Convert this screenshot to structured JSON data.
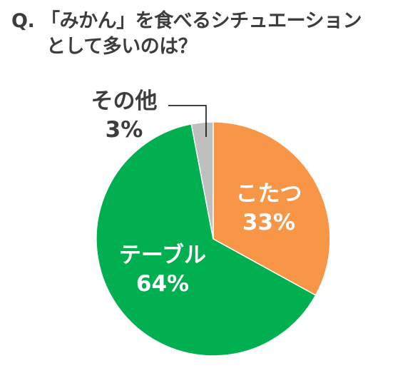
{
  "question": {
    "line1": "Q. 「みかん」を食べるシチュエーション",
    "line2": "として多いのは？"
  },
  "chart_data": {
    "type": "pie",
    "title": "Q. 「みかん」を食べるシチュエーションとして多いのは？",
    "slices": [
      {
        "label": "こたつ",
        "value": 33,
        "display": "33%",
        "color": "#f79646",
        "label_color": "#ffffff"
      },
      {
        "label": "テーブル",
        "value": 64,
        "display": "64%",
        "color": "#00b050",
        "label_color": "#ffffff"
      },
      {
        "label": "その他",
        "value": 3,
        "display": "3%",
        "color": "#bfbfbf",
        "label_color": "#3d3d3d"
      }
    ],
    "start": "12 o'clock",
    "direction": "clockwise",
    "legend": "none"
  }
}
